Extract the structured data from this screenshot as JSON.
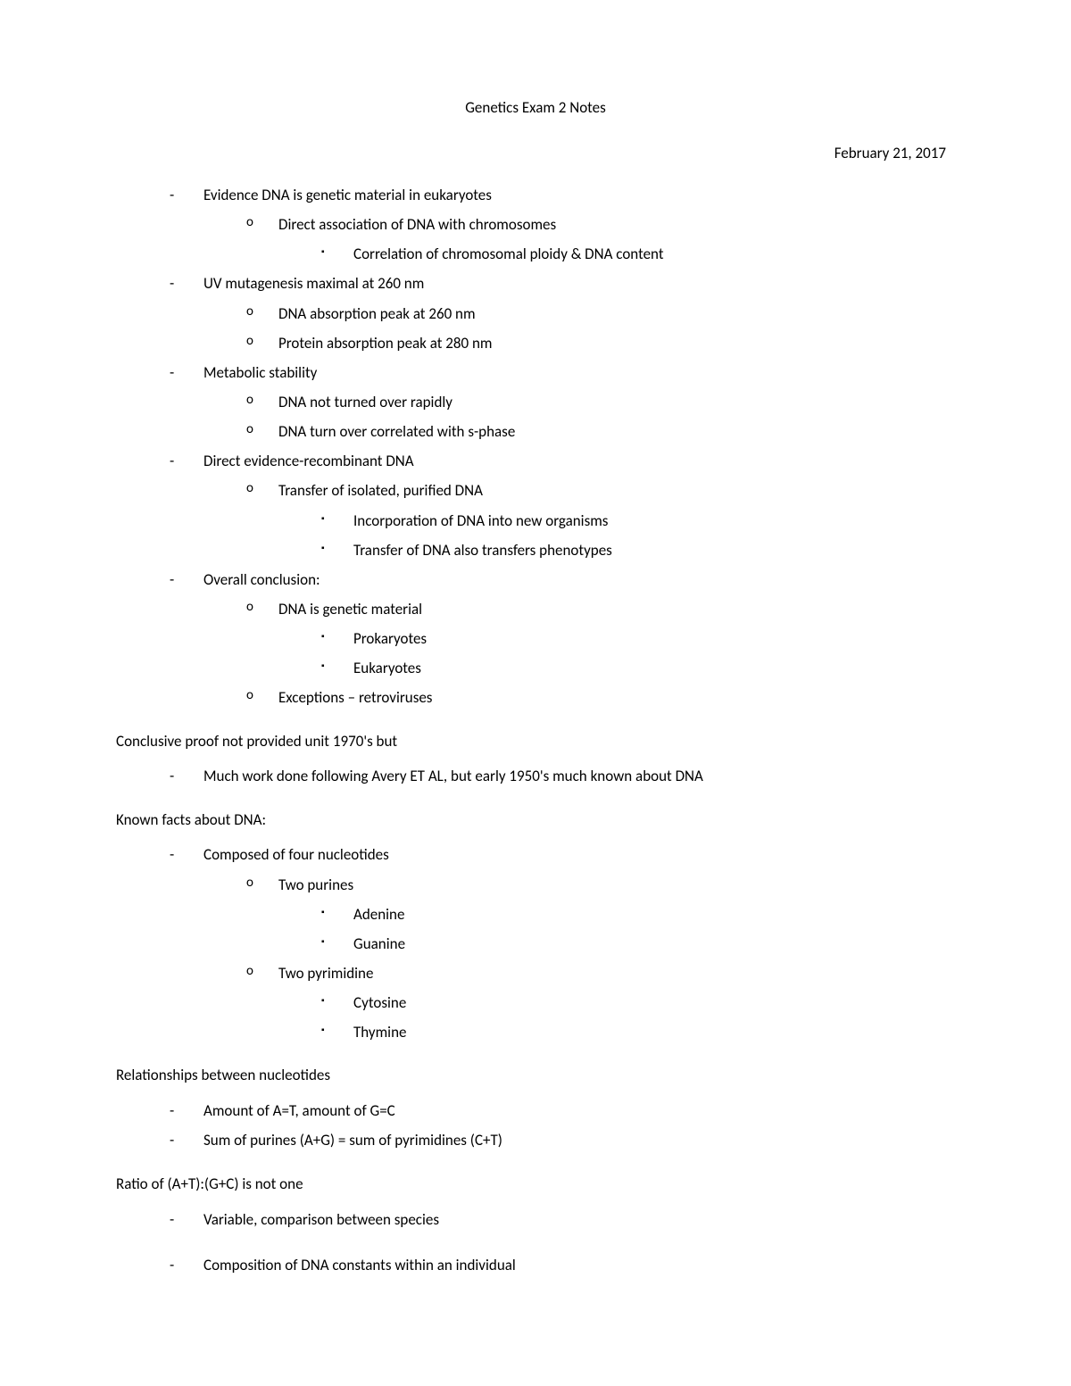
{
  "title": "Genetics Exam 2 Notes",
  "date": "February 21, 2017",
  "section1": [
    {
      "text": "Evidence DNA is genetic material in eukaryotes",
      "sub": [
        {
          "text": "Direct association of DNA with chromosomes",
          "sub": [
            {
              "text": "Correlation of chromosomal ploidy & DNA content"
            }
          ]
        }
      ]
    },
    {
      "text": "UV mutagenesis maximal at 260 nm",
      "sub": [
        {
          "text": "DNA absorption peak at 260 nm"
        },
        {
          "text": "Protein absorption peak at 280 nm"
        }
      ]
    },
    {
      "text": "Metabolic stability",
      "sub": [
        {
          "text": "DNA not turned over rapidly"
        },
        {
          "text": "DNA turn over correlated with s-phase"
        }
      ]
    },
    {
      "text": "Direct evidence-recombinant DNA",
      "sub": [
        {
          "text": "Transfer of isolated, purified DNA",
          "sub": [
            {
              "text": "Incorporation of DNA into new organisms"
            },
            {
              "text": "Transfer of DNA also transfers phenotypes"
            }
          ]
        }
      ]
    },
    {
      "text": "Overall conclusion:",
      "sub": [
        {
          "text": "DNA is genetic material",
          "sub": [
            {
              "text": "Prokaryotes"
            },
            {
              "text": "Eukaryotes"
            }
          ]
        },
        {
          "text": "Exceptions – retroviruses"
        }
      ]
    }
  ],
  "para1": "Conclusive proof not provided unit 1970's but",
  "section2": [
    {
      "text": "Much work done following Avery ET AL, but early 1950's much known about DNA"
    }
  ],
  "para2": "Known facts about DNA:",
  "section3": [
    {
      "text": "Composed of four nucleotides",
      "sub": [
        {
          "text": "Two purines",
          "sub": [
            {
              "text": "Adenine"
            },
            {
              "text": "Guanine"
            }
          ]
        },
        {
          "text": "Two pyrimidine",
          "sub": [
            {
              "text": "Cytosine"
            },
            {
              "text": "Thymine"
            }
          ]
        }
      ]
    }
  ],
  "para3": "Relationships between nucleotides",
  "section4": [
    {
      "text": "Amount of A=T, amount of G=C"
    },
    {
      "text": "Sum of purines (A+G) = sum of pyrimidines (C+T)"
    }
  ],
  "para4": "Ratio of (A+T):(G+C) is not one",
  "section5": [
    {
      "text": "Variable, comparison between species"
    }
  ],
  "section6": [
    {
      "text": "Composition of DNA constants within an individual"
    }
  ]
}
